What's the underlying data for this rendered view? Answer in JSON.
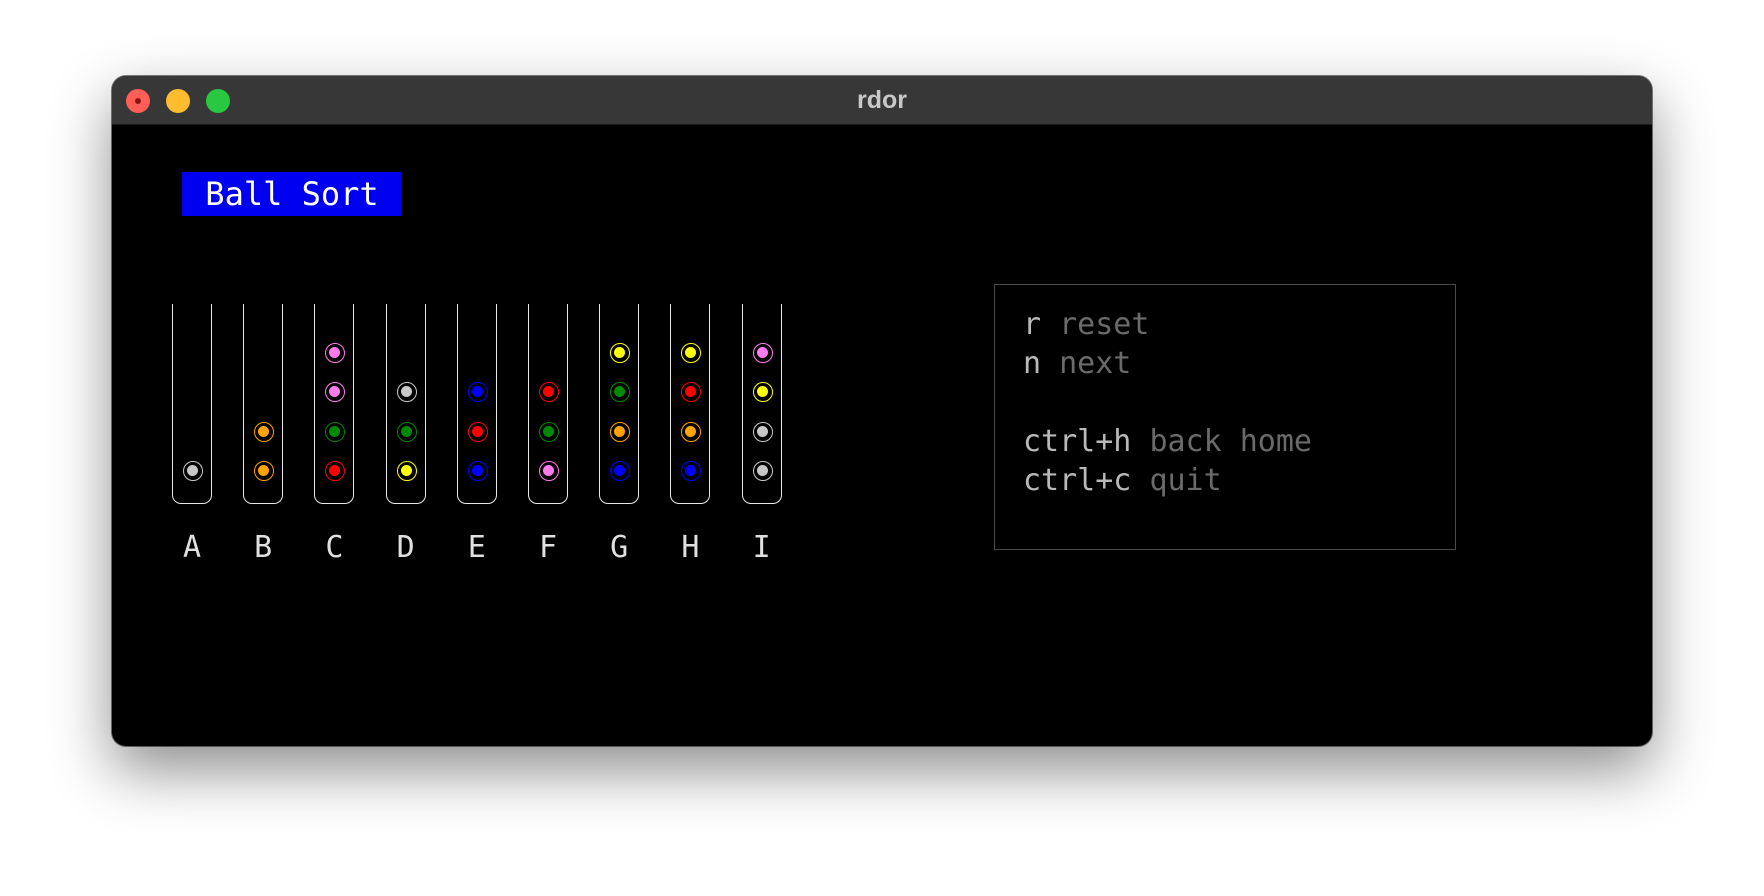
{
  "window": {
    "title": "rdor",
    "controls": [
      {
        "name": "close-button",
        "color": "#ff5f57"
      },
      {
        "name": "minimize-button",
        "color": "#febc2e"
      },
      {
        "name": "maximize-button",
        "color": "#28c840"
      }
    ]
  },
  "game": {
    "title": " Ball Sort ",
    "tubes": [
      {
        "label": "A",
        "balls": [
          "gray"
        ]
      },
      {
        "label": "B",
        "balls": [
          "orange",
          "orange"
        ]
      },
      {
        "label": "C",
        "balls": [
          "red",
          "green",
          "pink",
          "pink"
        ]
      },
      {
        "label": "D",
        "balls": [
          "yellow",
          "green",
          "gray"
        ]
      },
      {
        "label": "E",
        "balls": [
          "blue",
          "red",
          "blue"
        ]
      },
      {
        "label": "F",
        "balls": [
          "pink",
          "green",
          "red"
        ]
      },
      {
        "label": "G",
        "balls": [
          "blue",
          "orange",
          "green",
          "yellow"
        ]
      },
      {
        "label": "H",
        "balls": [
          "blue",
          "orange",
          "red",
          "yellow"
        ]
      },
      {
        "label": "I",
        "balls": [
          "gray",
          "gray",
          "yellow",
          "pink"
        ]
      }
    ],
    "ball_colors": {
      "gray": "#c8c8c8",
      "orange": "#ffa300",
      "red": "#ff0000",
      "green": "#008a00",
      "pink": "#ff7bec",
      "yellow": "#ffff00",
      "blue": "#0000ff"
    }
  },
  "help": {
    "lines": [
      {
        "key": "r",
        "desc": "reset"
      },
      {
        "key": "n",
        "desc": "next"
      },
      {
        "key": "ctrl+h",
        "desc": "back home"
      },
      {
        "key": "ctrl+c",
        "desc": "quit"
      }
    ]
  }
}
